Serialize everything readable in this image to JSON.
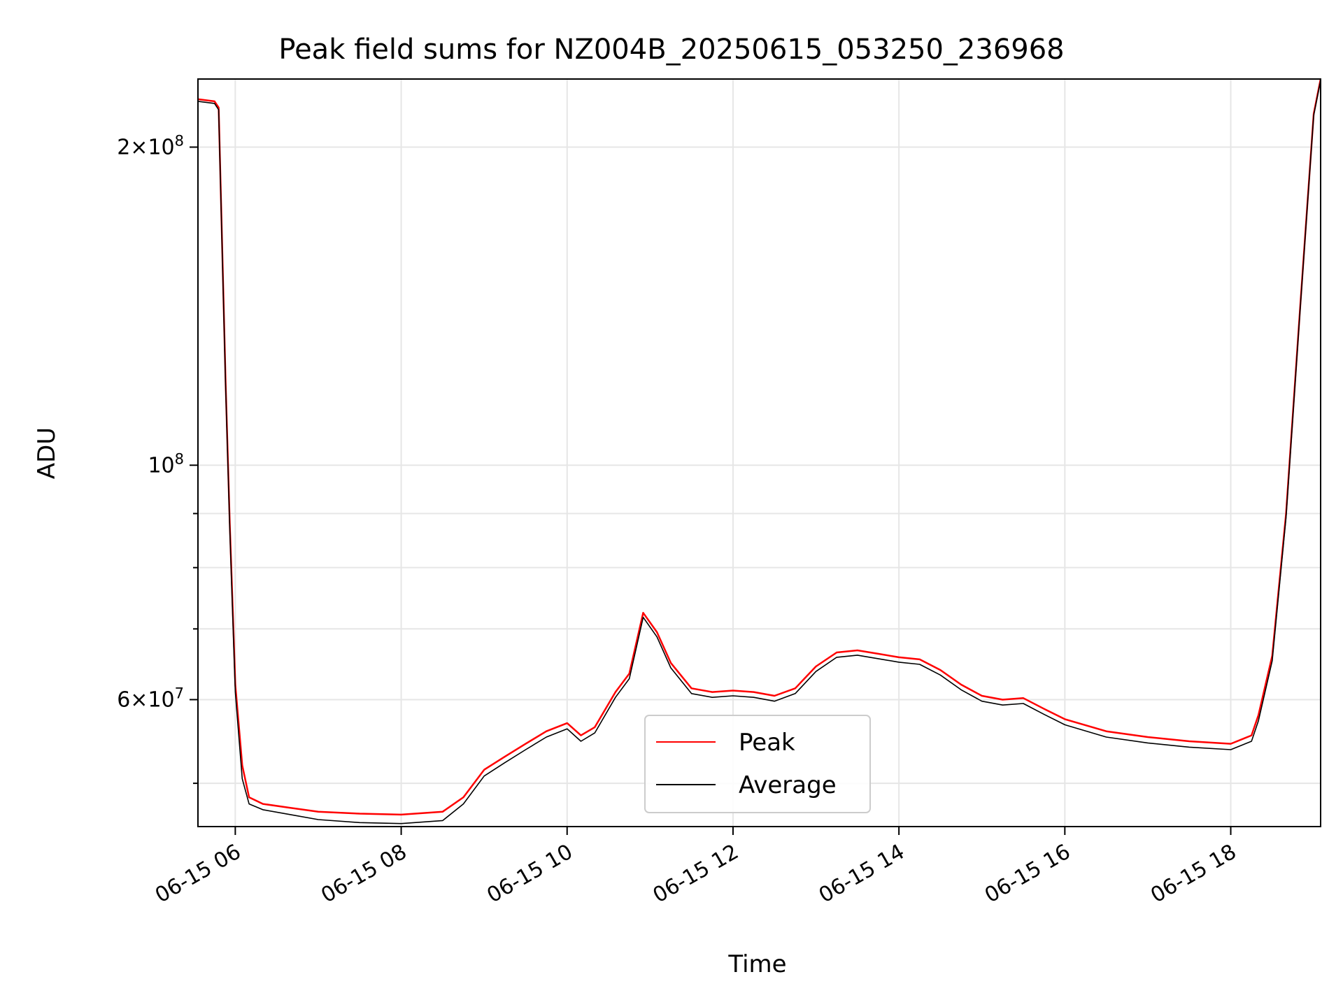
{
  "chart_data": {
    "type": "line",
    "title": "Peak field sums for NZ004B_20250615_053250_236968",
    "xlabel": "Time",
    "ylabel": "ADU",
    "xlim": [
      "06-15 05:33",
      "06-15 19:05"
    ],
    "ylim": [
      45500000,
      232000000
    ],
    "yscale": "log",
    "grid": true,
    "legend_position": "lower-center",
    "x_ticks": [
      "06-15 06",
      "06-15 08",
      "06-15 10",
      "06-15 12",
      "06-15 14",
      "06-15 16",
      "06-15 18"
    ],
    "y_ticks": [
      {
        "value": 60000000,
        "mantissa": "6",
        "exponent": "7"
      },
      {
        "value": 100000000,
        "mantissa": "",
        "exponent": "8"
      },
      {
        "value": 200000000,
        "mantissa": "2",
        "exponent": "8"
      }
    ],
    "series": [
      {
        "name": "Peak",
        "color": "#ff0000",
        "x": [
          "06-15 05:33",
          "06-15 05:45",
          "06-15 05:48",
          "06-15 05:53",
          "06-15 05:56",
          "06-15 06:00",
          "06-15 06:05",
          "06-15 06:10",
          "06-15 06:20",
          "06-15 06:40",
          "06-15 07:00",
          "06-15 07:30",
          "06-15 08:00",
          "06-15 08:30",
          "06-15 08:45",
          "06-15 09:00",
          "06-15 09:15",
          "06-15 09:30",
          "06-15 09:45",
          "06-15 10:00",
          "06-15 10:10",
          "06-15 10:20",
          "06-15 10:35",
          "06-15 10:45",
          "06-15 10:55",
          "06-15 11:05",
          "06-15 11:15",
          "06-15 11:30",
          "06-15 11:45",
          "06-15 12:00",
          "06-15 12:15",
          "06-15 12:30",
          "06-15 12:45",
          "06-15 13:00",
          "06-15 13:15",
          "06-15 13:30",
          "06-15 13:45",
          "06-15 14:00",
          "06-15 14:15",
          "06-15 14:30",
          "06-15 14:45",
          "06-15 15:00",
          "06-15 15:15",
          "06-15 15:30",
          "06-15 15:45",
          "06-15 16:00",
          "06-15 16:30",
          "06-15 17:00",
          "06-15 17:30",
          "06-15 18:00",
          "06-15 18:15",
          "06-15 18:20",
          "06-15 18:30",
          "06-15 18:40",
          "06-15 18:50",
          "06-15 19:00",
          "06-15 19:05"
        ],
        "values": [
          222000000,
          221000000,
          218000000,
          120000000,
          88000000,
          62000000,
          52000000,
          48500000,
          47800000,
          47400000,
          47000000,
          46800000,
          46700000,
          47000000,
          48500000,
          51500000,
          53000000,
          54500000,
          56000000,
          57000000,
          55500000,
          56500000,
          61000000,
          63500000,
          72500000,
          69500000,
          65000000,
          61500000,
          61000000,
          61200000,
          61000000,
          60500000,
          61500000,
          64500000,
          66500000,
          66800000,
          66300000,
          65800000,
          65500000,
          64000000,
          62000000,
          60500000,
          60000000,
          60200000,
          58800000,
          57500000,
          56000000,
          55300000,
          54800000,
          54500000,
          55500000,
          58000000,
          66000000,
          90000000,
          140000000,
          215000000,
          232000000
        ]
      },
      {
        "name": "Average",
        "color": "#000000",
        "x": [
          "06-15 05:33",
          "06-15 05:45",
          "06-15 05:48",
          "06-15 05:53",
          "06-15 05:56",
          "06-15 06:00",
          "06-15 06:05",
          "06-15 06:10",
          "06-15 06:20",
          "06-15 06:40",
          "06-15 07:00",
          "06-15 07:30",
          "06-15 08:00",
          "06-15 08:30",
          "06-15 08:45",
          "06-15 09:00",
          "06-15 09:15",
          "06-15 09:30",
          "06-15 09:45",
          "06-15 10:00",
          "06-15 10:10",
          "06-15 10:20",
          "06-15 10:35",
          "06-15 10:45",
          "06-15 10:55",
          "06-15 11:05",
          "06-15 11:15",
          "06-15 11:30",
          "06-15 11:45",
          "06-15 12:00",
          "06-15 12:15",
          "06-15 12:30",
          "06-15 12:45",
          "06-15 13:00",
          "06-15 13:15",
          "06-15 13:30",
          "06-15 13:45",
          "06-15 14:00",
          "06-15 14:15",
          "06-15 14:30",
          "06-15 14:45",
          "06-15 15:00",
          "06-15 15:15",
          "06-15 15:30",
          "06-15 15:45",
          "06-15 16:00",
          "06-15 16:30",
          "06-15 17:00",
          "06-15 17:30",
          "06-15 18:00",
          "06-15 18:15",
          "06-15 18:20",
          "06-15 18:30",
          "06-15 18:40",
          "06-15 18:50",
          "06-15 19:00",
          "06-15 19:05"
        ],
        "values": [
          221000000,
          220000000,
          217000000,
          119000000,
          87000000,
          61000000,
          50500000,
          47800000,
          47200000,
          46700000,
          46200000,
          45900000,
          45800000,
          46100000,
          47800000,
          50800000,
          52300000,
          53800000,
          55300000,
          56300000,
          54800000,
          55800000,
          60300000,
          62800000,
          71800000,
          68800000,
          64300000,
          60800000,
          60300000,
          60500000,
          60300000,
          59800000,
          60800000,
          63800000,
          65800000,
          66100000,
          65600000,
          65100000,
          64800000,
          63300000,
          61300000,
          59800000,
          59300000,
          59500000,
          58100000,
          56800000,
          55300000,
          54600000,
          54100000,
          53800000,
          54800000,
          57300000,
          65300000,
          89300000,
          139300000,
          214300000,
          231300000
        ]
      }
    ]
  }
}
